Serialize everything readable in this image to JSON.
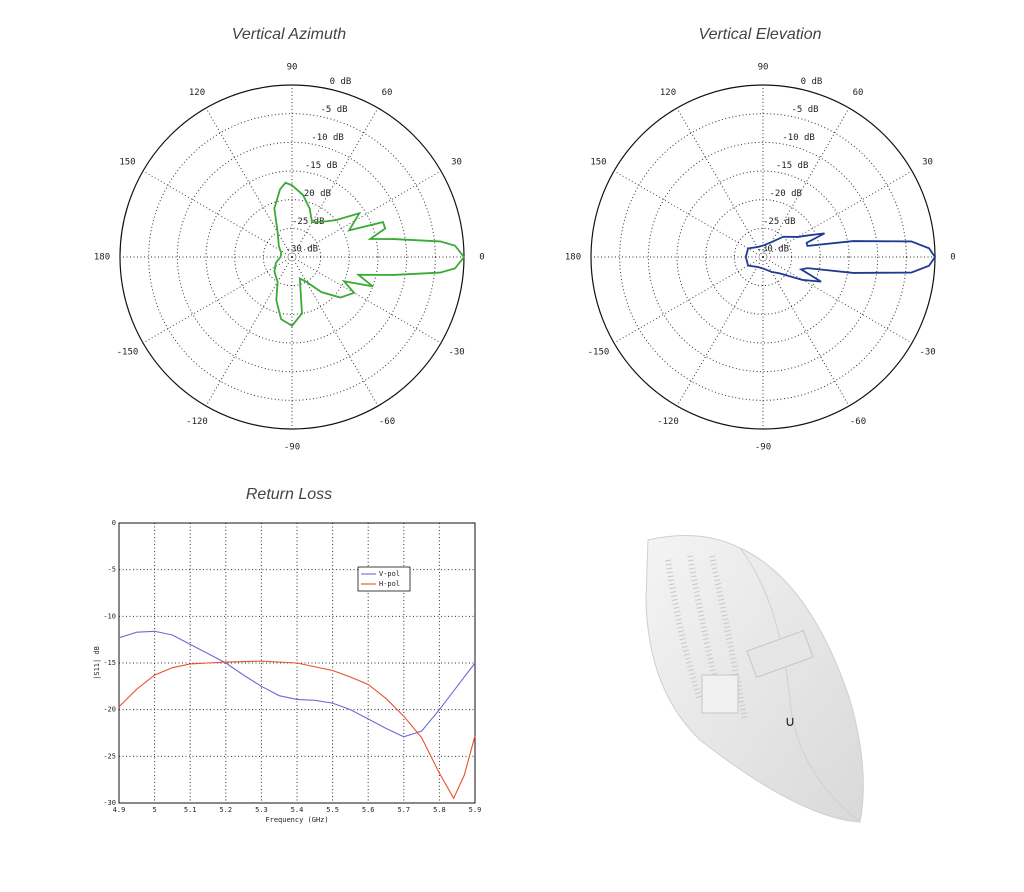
{
  "chart_data": [
    {
      "type": "polar",
      "title": "Vertical Azimuth",
      "rlim": [
        -30,
        0
      ],
      "rticks": [
        {
          "value": 0,
          "label": "0 dB"
        },
        {
          "value": -5,
          "label": "-5 dB"
        },
        {
          "value": -10,
          "label": "-10 dB"
        },
        {
          "value": -15,
          "label": "-15 dB"
        },
        {
          "value": -20,
          "label": "-20 dB"
        },
        {
          "value": -25,
          "label": "-25 dB"
        },
        {
          "value": -30,
          "label": "-30 dB"
        }
      ],
      "thetaticks": [
        0,
        30,
        60,
        90,
        120,
        150,
        180,
        -150,
        -120,
        -90,
        -60,
        -30
      ],
      "theta": [
        -180,
        -160,
        -140,
        -120,
        -110,
        -100,
        -90,
        -80,
        -70,
        -60,
        -50,
        -40,
        -30,
        -25,
        -20,
        -15,
        -10,
        -6,
        -4,
        0,
        4,
        6,
        10,
        13,
        17,
        21,
        25,
        33,
        40,
        50,
        60,
        70,
        80,
        90,
        95,
        100,
        110,
        120,
        140,
        160,
        180
      ],
      "values": [
        -28,
        -27,
        -26,
        -25,
        -22,
        -19,
        -18,
        -20,
        -26,
        -25,
        -22,
        -19,
        -17.5,
        -20,
        -15,
        -18,
        -12,
        -4,
        -1.5,
        0,
        -1.5,
        -4,
        -12,
        -16,
        -13,
        -13,
        -19,
        -16,
        -20,
        -22,
        -23,
        -21,
        -19,
        -17.5,
        -17,
        -18,
        -21,
        -25,
        -27,
        -28,
        -28
      ],
      "color": "#3aaa35",
      "grid": true
    },
    {
      "type": "polar",
      "title": "Vertical Elevation",
      "rlim": [
        -30,
        0
      ],
      "rticks": [
        {
          "value": 0,
          "label": "0 dB"
        },
        {
          "value": -5,
          "label": "-5 dB"
        },
        {
          "value": -10,
          "label": "-10 dB"
        },
        {
          "value": -15,
          "label": "-15 dB"
        },
        {
          "value": -20,
          "label": "-20 dB"
        },
        {
          "value": -25,
          "label": "-25 dB"
        },
        {
          "value": -30,
          "label": "-30 dB"
        }
      ],
      "thetaticks": [
        0,
        30,
        60,
        90,
        120,
        150,
        180,
        -150,
        -120,
        -90,
        -60,
        -30
      ],
      "theta": [
        -180,
        -150,
        -120,
        -90,
        -60,
        -45,
        -30,
        -23,
        -18,
        -14,
        -10,
        -6,
        -3,
        0,
        3,
        6,
        10,
        14,
        18,
        21,
        25,
        30,
        45,
        60,
        90,
        120,
        150,
        180
      ],
      "values": [
        -27,
        -27,
        -28,
        -28,
        -27,
        -26,
        -22,
        -19,
        -23,
        -22,
        -14,
        -4,
        -1,
        0,
        -1,
        -4,
        -14,
        -22,
        -22,
        -18.5,
        -21,
        -23,
        -25,
        -27,
        -28,
        -28,
        -27,
        -27
      ],
      "color": "#1f3a93",
      "grid": true
    },
    {
      "type": "line",
      "title": "Return Loss",
      "xlabel": "Frequency (GHz)",
      "ylabel": "|S11| dB",
      "xlim": [
        4.9,
        5.9
      ],
      "xticks": [
        4.9,
        5,
        5.1,
        5.2,
        5.3,
        5.4,
        5.5,
        5.6,
        5.7,
        5.8,
        5.9
      ],
      "ylim": [
        -30,
        0
      ],
      "yticks": [
        0,
        -5,
        -10,
        -15,
        -20,
        -25,
        -30
      ],
      "grid": true,
      "legend": "upper right",
      "series": [
        {
          "name": "V-pol",
          "color": "#6b6bd6",
          "x": [
            4.9,
            4.95,
            5.0,
            5.05,
            5.1,
            5.15,
            5.2,
            5.25,
            5.3,
            5.35,
            5.4,
            5.45,
            5.5,
            5.55,
            5.6,
            5.65,
            5.7,
            5.75,
            5.8,
            5.85,
            5.9
          ],
          "values": [
            -12.3,
            -11.7,
            -11.6,
            -12,
            -13,
            -14,
            -15,
            -16.3,
            -17.5,
            -18.5,
            -18.9,
            -19,
            -19.3,
            -20,
            -21,
            -22,
            -22.9,
            -22.3,
            -20,
            -17.5,
            -15
          ]
        },
        {
          "name": "H-pol",
          "color": "#e8502e",
          "x": [
            4.9,
            4.95,
            5.0,
            5.05,
            5.1,
            5.15,
            5.2,
            5.3,
            5.4,
            5.5,
            5.55,
            5.6,
            5.65,
            5.7,
            5.75,
            5.8,
            5.84,
            5.87,
            5.9
          ],
          "values": [
            -19.7,
            -17.8,
            -16.3,
            -15.5,
            -15.1,
            -15,
            -14.9,
            -14.8,
            -15,
            -15.8,
            -16.5,
            -17.3,
            -18.8,
            -20.7,
            -23,
            -26.8,
            -29.5,
            -27,
            -22.8
          ]
        }
      ]
    }
  ]
}
